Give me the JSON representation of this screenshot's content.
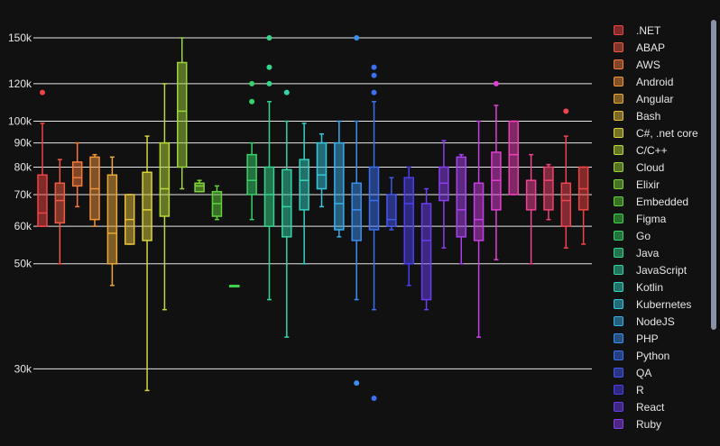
{
  "chart_data": {
    "type": "box",
    "y_scale": "log",
    "ylim": [
      26000,
      150000
    ],
    "y_ticks": [
      {
        "value": 30000,
        "label": "30k"
      },
      {
        "value": 50000,
        "label": "50k"
      },
      {
        "value": 60000,
        "label": "60k"
      },
      {
        "value": 70000,
        "label": "70k"
      },
      {
        "value": 80000,
        "label": "80k"
      },
      {
        "value": 90000,
        "label": "90k"
      },
      {
        "value": 100000,
        "label": "100k"
      },
      {
        "value": 120000,
        "label": "120k"
      },
      {
        "value": 150000,
        "label": "150k"
      }
    ],
    "grid": true,
    "legend_position": "right",
    "series": [
      {
        "name": ".NET",
        "color": "#ef4444",
        "min": 60000,
        "q1": 60000,
        "median": 64000,
        "q3": 77000,
        "max": 99000,
        "outliers": [
          115000
        ]
      },
      {
        "name": "ABAP",
        "color": "#f05a44",
        "min": 50000,
        "q1": 61000,
        "median": 68000,
        "q3": 74000,
        "max": 83000,
        "outliers": []
      },
      {
        "name": "AWS",
        "color": "#f47a3c",
        "min": 66000,
        "q1": 73000,
        "median": 76000,
        "q3": 82000,
        "max": 90000,
        "outliers": []
      },
      {
        "name": "Android",
        "color": "#f2943a",
        "min": 60000,
        "q1": 62000,
        "median": 72000,
        "q3": 84000,
        "max": 85000,
        "outliers": []
      },
      {
        "name": "Angular",
        "color": "#e9a93a",
        "min": 45000,
        "q1": 50000,
        "median": 58000,
        "q3": 77000,
        "max": 84000,
        "outliers": []
      },
      {
        "name": "Bash",
        "color": "#e6c03c",
        "min": 55000,
        "q1": 55000,
        "median": 62000,
        "q3": 70000,
        "max": 70000,
        "outliers": []
      },
      {
        "name": "C#, .net core",
        "color": "#d9d43c",
        "min": 27000,
        "q1": 56000,
        "median": 65000,
        "q3": 78000,
        "max": 93000,
        "outliers": []
      },
      {
        "name": "C/C++",
        "color": "#b7d93a",
        "min": 40000,
        "q1": 63000,
        "median": 72000,
        "q3": 90000,
        "max": 120000,
        "outliers": []
      },
      {
        "name": "Cloud",
        "color": "#9bd43a",
        "min": 72000,
        "q1": 80000,
        "median": 105000,
        "q3": 133000,
        "max": 150000,
        "outliers": []
      },
      {
        "name": "Elixir",
        "color": "#7ed43a",
        "min": 71000,
        "q1": 71000,
        "median": 73000,
        "q3": 74000,
        "max": 75000,
        "outliers": []
      },
      {
        "name": "Embedded",
        "color": "#5fd23c",
        "min": 62000,
        "q1": 63000,
        "median": 67000,
        "q3": 71000,
        "max": 73000,
        "outliers": []
      },
      {
        "name": "Figma",
        "color": "#3fd14a",
        "min": 45000,
        "q1": 45000,
        "median": 45000,
        "q3": 45000,
        "max": 45000,
        "outliers": []
      },
      {
        "name": "Go",
        "color": "#36d26a",
        "min": 62000,
        "q1": 70000,
        "median": 75000,
        "q3": 85000,
        "max": 90000,
        "outliers": [
          110000,
          120000
        ]
      },
      {
        "name": "Java",
        "color": "#34d58c",
        "min": 42000,
        "q1": 60000,
        "median": 70000,
        "q3": 80000,
        "max": 110000,
        "outliers": [
          120000,
          130000,
          150000
        ]
      },
      {
        "name": "JavaScript",
        "color": "#33d5a8",
        "min": 35000,
        "q1": 57000,
        "median": 66000,
        "q3": 79000,
        "max": 100000,
        "outliers": [
          115000
        ]
      },
      {
        "name": "Kotlin",
        "color": "#33d2c2",
        "min": 50000,
        "q1": 65000,
        "median": 75000,
        "q3": 83000,
        "max": 99000,
        "outliers": []
      },
      {
        "name": "Kubernetes",
        "color": "#36c6dd",
        "min": 66000,
        "q1": 72000,
        "median": 77000,
        "q3": 90000,
        "max": 94000,
        "outliers": []
      },
      {
        "name": "NodeJS",
        "color": "#3aaeea",
        "min": 57000,
        "q1": 59000,
        "median": 67000,
        "q3": 90000,
        "max": 100000,
        "outliers": []
      },
      {
        "name": "PHP",
        "color": "#3b8ff0",
        "min": 42000,
        "q1": 56000,
        "median": 65000,
        "q3": 74000,
        "max": 100000,
        "outliers": [
          28000,
          150000
        ]
      },
      {
        "name": "Python",
        "color": "#3a70f2",
        "min": 40000,
        "q1": 59000,
        "median": 68000,
        "q3": 80000,
        "max": 110000,
        "outliers": [
          26000,
          115000,
          125000,
          130000
        ]
      },
      {
        "name": "QA",
        "color": "#4357f0",
        "min": 59000,
        "q1": 60000,
        "median": 62000,
        "q3": 70000,
        "max": 76000,
        "outliers": []
      },
      {
        "name": "R",
        "color": "#4c3ff0",
        "min": 45000,
        "q1": 50000,
        "median": 67000,
        "q3": 76000,
        "max": 80000,
        "outliers": []
      },
      {
        "name": "React",
        "color": "#6a3df0",
        "min": 40000,
        "q1": 42000,
        "median": 56000,
        "q3": 67000,
        "max": 72000,
        "outliers": []
      },
      {
        "name": "Ruby",
        "color": "#8a3ef0",
        "min": 54000,
        "q1": 68000,
        "median": 74000,
        "q3": 80000,
        "max": 91000,
        "outliers": []
      },
      {
        "name": "",
        "color": "#aa3ff0",
        "min": 50000,
        "q1": 57000,
        "median": 65000,
        "q3": 84000,
        "max": 85000,
        "outliers": []
      },
      {
        "name": "",
        "color": "#c83ee6",
        "min": 35000,
        "q1": 56000,
        "median": 62000,
        "q3": 74000,
        "max": 100000,
        "outliers": []
      },
      {
        "name": "",
        "color": "#e03fd2",
        "min": 51000,
        "q1": 65000,
        "median": 75000,
        "q3": 86000,
        "max": 108000,
        "outliers": [
          120000
        ]
      },
      {
        "name": "",
        "color": "#ee40b8",
        "min": 70000,
        "q1": 70000,
        "median": 85000,
        "q3": 100000,
        "max": 100000,
        "outliers": []
      },
      {
        "name": "",
        "color": "#f04294",
        "min": 50000,
        "q1": 65000,
        "median": 75000,
        "q3": 75000,
        "max": 85000,
        "outliers": []
      },
      {
        "name": "",
        "color": "#f04370",
        "min": 62000,
        "q1": 65000,
        "median": 75000,
        "q3": 80000,
        "max": 81000,
        "outliers": []
      },
      {
        "name": "",
        "color": "#f04452",
        "min": 54000,
        "q1": 60000,
        "median": 68000,
        "q3": 74000,
        "max": 93000,
        "outliers": [
          105000
        ]
      },
      {
        "name": "",
        "color": "#f04444",
        "min": 55000,
        "q1": 65000,
        "median": 72000,
        "q3": 80000,
        "max": 80000,
        "outliers": []
      }
    ]
  }
}
